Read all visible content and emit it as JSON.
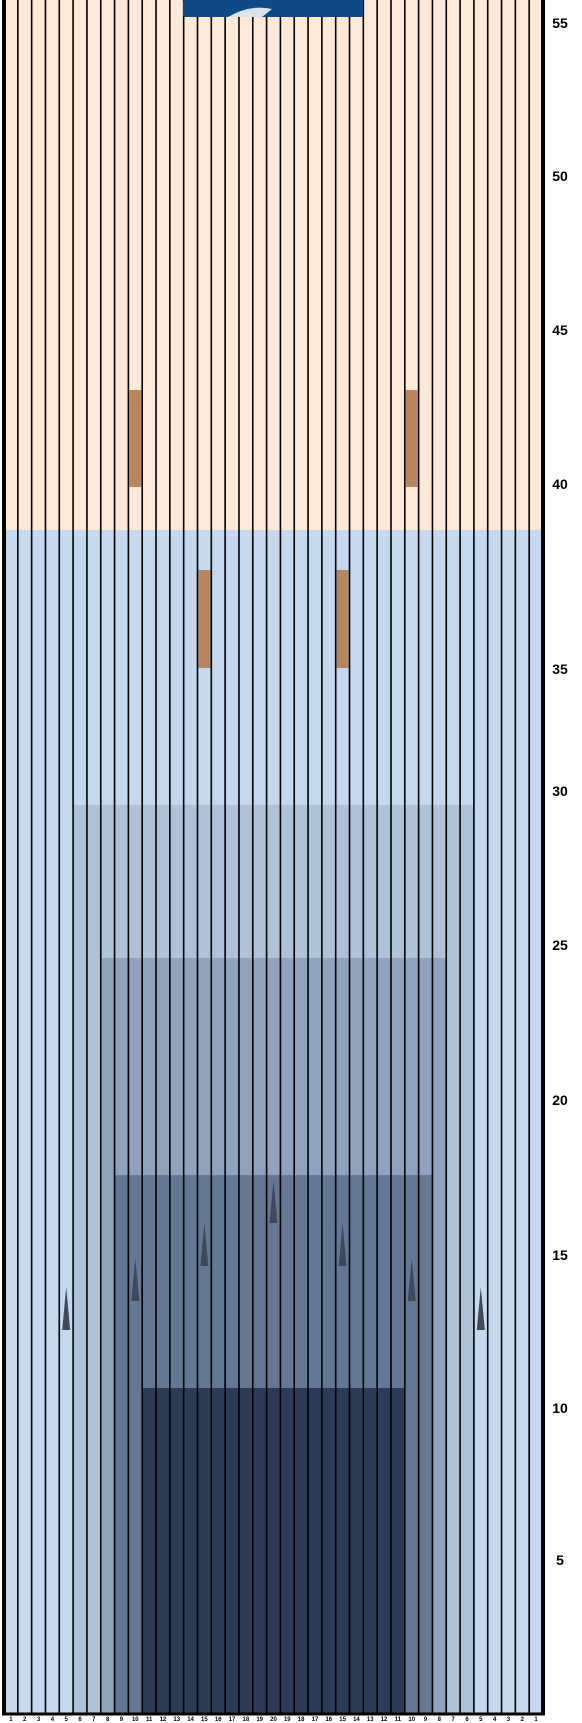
{
  "lane": {
    "total_boards": 39,
    "colors": {
      "board_line": "#000000",
      "backend_wood": "#fde9d8",
      "frontend_base": "#c5d8ef",
      "oil_zone_1": "#b0c2d9",
      "oil_zone_2": "#8fa3bd",
      "oil_zone_3": "#637894",
      "oil_zone_4": "#2b3b55",
      "marker": "#b8865e",
      "arrow": "#3e4a5c",
      "logo": "#0e4a86"
    },
    "distance_labels": [
      "55",
      "50",
      "45",
      "40",
      "35",
      "30",
      "25",
      "20",
      "15",
      "10",
      "5"
    ],
    "board_labels": [
      "1",
      "2",
      "3",
      "4",
      "5",
      "6",
      "7",
      "8",
      "9",
      "10",
      "11",
      "12",
      "13",
      "14",
      "15",
      "16",
      "17",
      "18",
      "19",
      "20",
      "19",
      "18",
      "17",
      "16",
      "15",
      "14",
      "13",
      "12",
      "11",
      "10",
      "9",
      "8",
      "7",
      "6",
      "5",
      "4",
      "3",
      "2",
      "1"
    ]
  },
  "logo": {
    "name": "logo-badge"
  }
}
